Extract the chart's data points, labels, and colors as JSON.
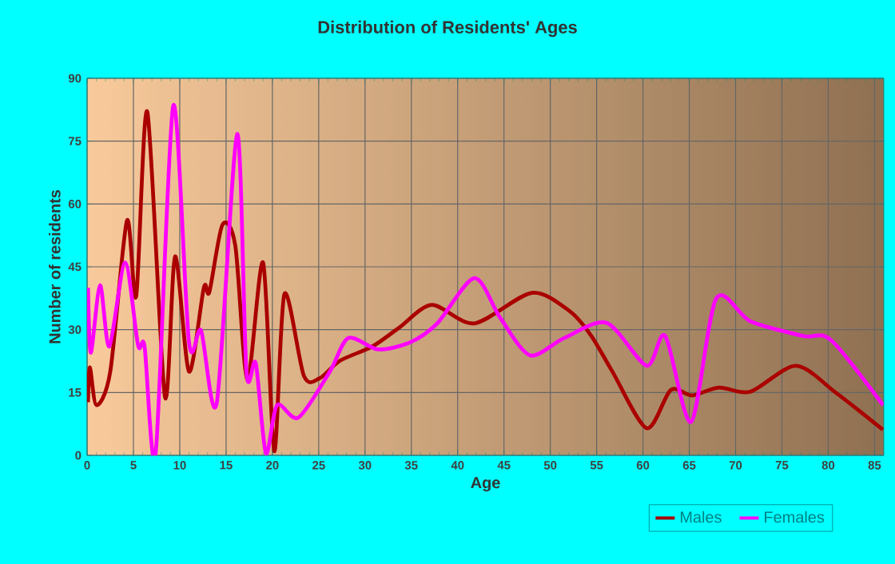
{
  "chart_data": {
    "type": "line",
    "title": "Distribution of Residents' Ages",
    "xlabel": "Age",
    "ylabel": "Number of residents",
    "xlim": [
      0,
      86
    ],
    "xticks": [
      0,
      5,
      10,
      15,
      20,
      25,
      30,
      35,
      40,
      45,
      50,
      55,
      60,
      65,
      70,
      75,
      80,
      85
    ],
    "ylim": [
      0,
      90
    ],
    "yticks": [
      0,
      15,
      30,
      45,
      60,
      75,
      90
    ],
    "grid": true,
    "legend": "bottom right",
    "series": [
      {
        "name": "Males",
        "color": "#aa0000",
        "x": [
          0.1,
          0.3,
          1,
          2.5,
          4.3,
          5.3,
          6.5,
          8.4,
          9.5,
          11,
          12.6,
          13.2,
          14.6,
          16,
          17.3,
          19,
          20.2,
          21.3,
          23.4,
          25.1,
          27.3,
          30.8,
          33.7,
          37.2,
          41.8,
          48,
          52.1,
          54.4,
          56.7,
          60.4,
          63,
          65.3,
          68.2,
          71.6,
          76.5,
          80.8,
          85.9
        ],
        "values": [
          12.7,
          21,
          12,
          20,
          56,
          38,
          82,
          14,
          47.5,
          20,
          40,
          39,
          55,
          50,
          18,
          46,
          1,
          38.5,
          19,
          18.4,
          22.6,
          26,
          30.5,
          35.9,
          31.5,
          38.8,
          34.4,
          28.6,
          20,
          6.5,
          15.6,
          14.3,
          16.2,
          15.2,
          21.4,
          15,
          6.1
        ]
      },
      {
        "name": "Females",
        "color": "#ff00ff",
        "x": [
          0.1,
          0.4,
          1.4,
          2.4,
          4.1,
          5.5,
          6.2,
          7.4,
          9.3,
          11,
          12.3,
          14,
          16.2,
          17.2,
          18.2,
          19.3,
          20.5,
          22.8,
          26.2,
          28.2,
          31.4,
          34.9,
          37.8,
          41.8,
          44.6,
          47.8,
          51.5,
          56.1,
          60.4,
          62.4,
          65.2,
          67.9,
          71.6,
          77.3,
          80.3,
          85.9
        ],
        "values": [
          40,
          24.5,
          40.6,
          26,
          46,
          26.3,
          26,
          0.5,
          83.5,
          27,
          29.8,
          12.6,
          76.7,
          20,
          22,
          0.5,
          12,
          9,
          20,
          28,
          25.3,
          27,
          31.5,
          42.3,
          32.8,
          23.9,
          28,
          31.6,
          21.4,
          28.5,
          8,
          37.4,
          32,
          28.5,
          27.5,
          12
        ]
      }
    ]
  }
}
